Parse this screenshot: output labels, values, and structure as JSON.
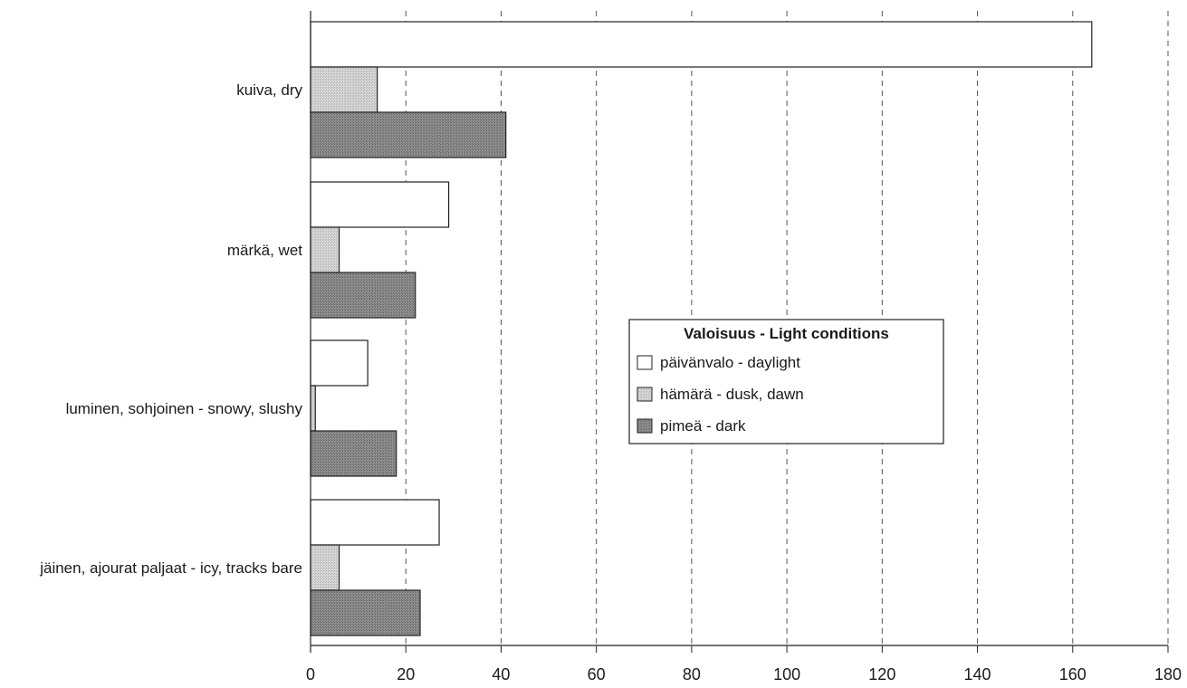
{
  "chart_data": {
    "type": "bar",
    "orientation": "horizontal",
    "title": "",
    "xlabel": "",
    "ylabel": "",
    "xlim": [
      0,
      180
    ],
    "x_ticks": [
      0,
      20,
      40,
      60,
      80,
      100,
      120,
      140,
      160,
      180
    ],
    "grid": "vertical dashed",
    "categories": [
      "kuiva, dry",
      "märkä, wet",
      "luminen, sohjoinen - snowy, slushy",
      "jäinen, ajourat paljaat - icy, tracks bare"
    ],
    "series": [
      {
        "name": "päivänvalo - daylight",
        "values": [
          164,
          29,
          12,
          27
        ],
        "color": "#ffffff"
      },
      {
        "name": "hämärä - dusk, dawn",
        "values": [
          14,
          6,
          1,
          6
        ],
        "color": "#c8c8c8"
      },
      {
        "name": "pimeä - dark",
        "values": [
          41,
          22,
          18,
          23
        ],
        "color": "#8a8a8a"
      }
    ],
    "legend": {
      "title": "Valoisuus - Light conditions",
      "placement": "center-right"
    }
  }
}
